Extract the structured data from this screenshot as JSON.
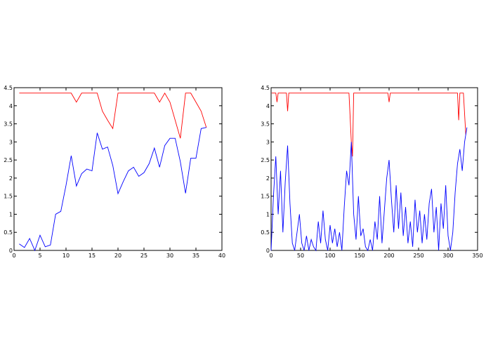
{
  "chart_data": [
    {
      "type": "line",
      "xlim": [
        0,
        40
      ],
      "xticks": [
        0,
        5,
        10,
        15,
        20,
        25,
        30,
        35,
        40
      ],
      "ylim": [
        0,
        4.5
      ],
      "yticks": [
        0,
        0.5,
        1,
        1.5,
        2,
        2.5,
        3,
        3.5,
        4,
        4.5
      ],
      "series": [
        {
          "color": "#ff0000",
          "x": [
            1,
            2,
            3,
            4,
            5,
            6,
            7,
            8,
            9,
            10,
            11,
            12,
            13,
            14,
            15,
            16,
            17,
            18,
            19,
            20,
            21,
            22,
            23,
            24,
            25,
            26,
            27,
            28,
            29,
            30,
            31,
            32,
            33,
            34,
            35,
            36,
            37
          ],
          "values": [
            4.35,
            4.35,
            4.35,
            4.35,
            4.35,
            4.35,
            4.35,
            4.35,
            4.35,
            4.35,
            4.35,
            4.1,
            4.35,
            4.35,
            4.35,
            4.35,
            3.85,
            3.6,
            3.37,
            4.35,
            4.35,
            4.35,
            4.35,
            4.35,
            4.35,
            4.35,
            4.35,
            4.1,
            4.35,
            4.1,
            3.6,
            3.1,
            4.35,
            4.35,
            4.1,
            3.85,
            3.4
          ]
        },
        {
          "color": "#0000ff",
          "x": [
            1,
            2,
            3,
            4,
            5,
            6,
            7,
            8,
            9,
            10,
            11,
            12,
            13,
            14,
            15,
            16,
            17,
            18,
            19,
            20,
            21,
            22,
            23,
            24,
            25,
            26,
            27,
            28,
            29,
            30,
            31,
            32,
            33,
            34,
            35,
            36,
            37
          ],
          "values": [
            0.18,
            0.08,
            0.33,
            0.0,
            0.42,
            0.1,
            0.15,
            1.0,
            1.08,
            1.8,
            2.62,
            1.78,
            2.12,
            2.25,
            2.2,
            3.25,
            2.8,
            2.86,
            2.35,
            1.57,
            1.9,
            2.2,
            2.3,
            2.05,
            2.15,
            2.4,
            2.83,
            2.3,
            2.9,
            3.1,
            3.1,
            2.45,
            1.58,
            2.55,
            2.55,
            3.37,
            3.4
          ]
        }
      ]
    },
    {
      "type": "line",
      "xlim": [
        0,
        350
      ],
      "xticks": [
        0,
        50,
        100,
        150,
        200,
        250,
        300,
        350
      ],
      "ylim": [
        0,
        4.5
      ],
      "yticks": [
        0,
        0.5,
        1,
        1.5,
        2,
        2.5,
        3,
        3.5,
        4,
        4.5
      ],
      "series": [
        {
          "color": "#ff0000",
          "x": [
            1,
            8,
            10,
            12,
            26,
            28,
            30,
            132,
            136,
            138,
            140,
            198,
            200,
            202,
            316,
            318,
            320,
            326,
            330
          ],
          "values": [
            4.35,
            4.35,
            4.1,
            4.35,
            4.35,
            3.85,
            4.35,
            4.35,
            3.0,
            2.6,
            4.35,
            4.35,
            4.1,
            4.35,
            4.35,
            3.6,
            4.35,
            4.35,
            3.2
          ]
        },
        {
          "color": "#0000ff",
          "x": [
            0,
            4,
            8,
            12,
            16,
            20,
            24,
            28,
            32,
            36,
            40,
            44,
            48,
            52,
            56,
            60,
            64,
            68,
            72,
            76,
            80,
            84,
            88,
            92,
            96,
            100,
            104,
            108,
            112,
            116,
            120,
            124,
            128,
            132,
            136,
            140,
            144,
            148,
            152,
            156,
            160,
            164,
            168,
            172,
            176,
            180,
            184,
            188,
            192,
            196,
            200,
            204,
            208,
            212,
            216,
            220,
            224,
            228,
            232,
            236,
            240,
            244,
            248,
            252,
            256,
            260,
            264,
            268,
            272,
            276,
            280,
            284,
            288,
            292,
            296,
            300,
            304,
            308,
            312,
            316,
            320,
            324,
            328,
            332
          ],
          "values": [
            0,
            1.5,
            2.6,
            1.0,
            2.2,
            0.5,
            1.9,
            2.9,
            1.3,
            0.2,
            0.0,
            0.5,
            1.0,
            0.2,
            0.0,
            0.4,
            0.0,
            0.3,
            0.1,
            0.0,
            0.8,
            0.2,
            1.1,
            0.3,
            0.0,
            0.7,
            0.2,
            0.6,
            0.1,
            0.5,
            0.0,
            1.2,
            2.2,
            1.8,
            3.0,
            1.0,
            0.3,
            1.5,
            0.4,
            0.6,
            0.1,
            0.0,
            0.3,
            0.0,
            0.8,
            0.3,
            1.5,
            0.2,
            1.1,
            2.0,
            2.5,
            1.4,
            0.5,
            1.8,
            0.6,
            1.6,
            0.4,
            1.2,
            0.2,
            0.8,
            0.1,
            1.4,
            0.5,
            1.1,
            0.2,
            1.0,
            0.3,
            1.3,
            1.7,
            0.5,
            1.2,
            0.0,
            1.3,
            0.6,
            1.8,
            0.4,
            0.0,
            0.5,
            1.6,
            2.4,
            2.8,
            2.2,
            3.0,
            3.4
          ]
        }
      ]
    }
  ]
}
